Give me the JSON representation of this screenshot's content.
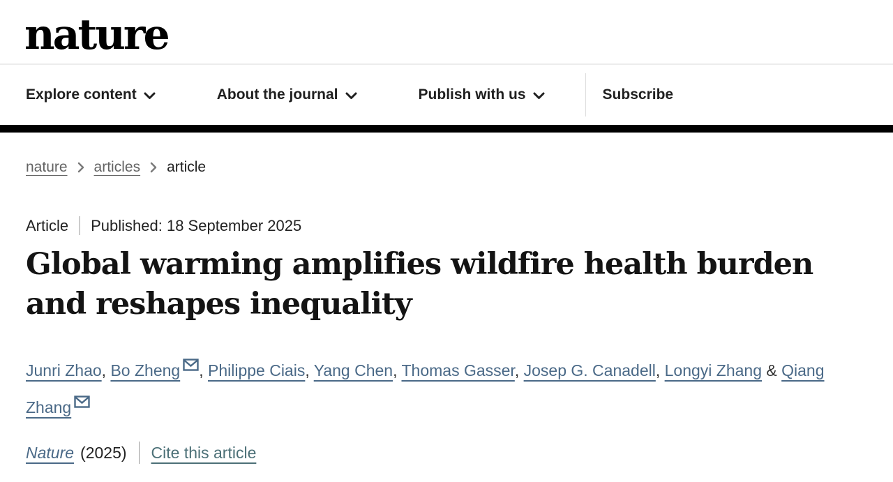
{
  "header": {
    "logo": "nature",
    "nav_items": [
      {
        "label": "Explore content"
      },
      {
        "label": "About the journal"
      },
      {
        "label": "Publish with us"
      }
    ],
    "subscribe_label": "Subscribe"
  },
  "breadcrumb": {
    "items": [
      {
        "label": "nature",
        "is_link": true
      },
      {
        "label": "articles",
        "is_link": true
      },
      {
        "label": "article",
        "is_link": false
      }
    ]
  },
  "article": {
    "type_label": "Article",
    "published_label": "Published:",
    "published_date": "18 September 2025",
    "published_full": "Published: 18 September 2025",
    "title": "Global warming amplifies wildfire health burden and reshapes inequality",
    "authors": [
      {
        "name": "Junri Zhao",
        "email": false
      },
      {
        "name": "Bo Zheng",
        "email": true
      },
      {
        "name": "Philippe Ciais",
        "email": false
      },
      {
        "name": "Yang Chen",
        "email": false
      },
      {
        "name": "Thomas Gasser",
        "email": false
      },
      {
        "name": "Josep G. Canadell",
        "email": false
      },
      {
        "name": "Longyi Zhang",
        "email": false
      },
      {
        "name": "Qiang Zhang",
        "email": true
      }
    ],
    "journal": "Nature",
    "year": "(2025)",
    "cite_label": "Cite this article"
  },
  "colors": {
    "author_link": "#4a6987",
    "cite_link": "#4c7077",
    "nav_text": "#1f1f1f",
    "black_bar": "#000000",
    "breadcrumb_link": "#636363"
  }
}
